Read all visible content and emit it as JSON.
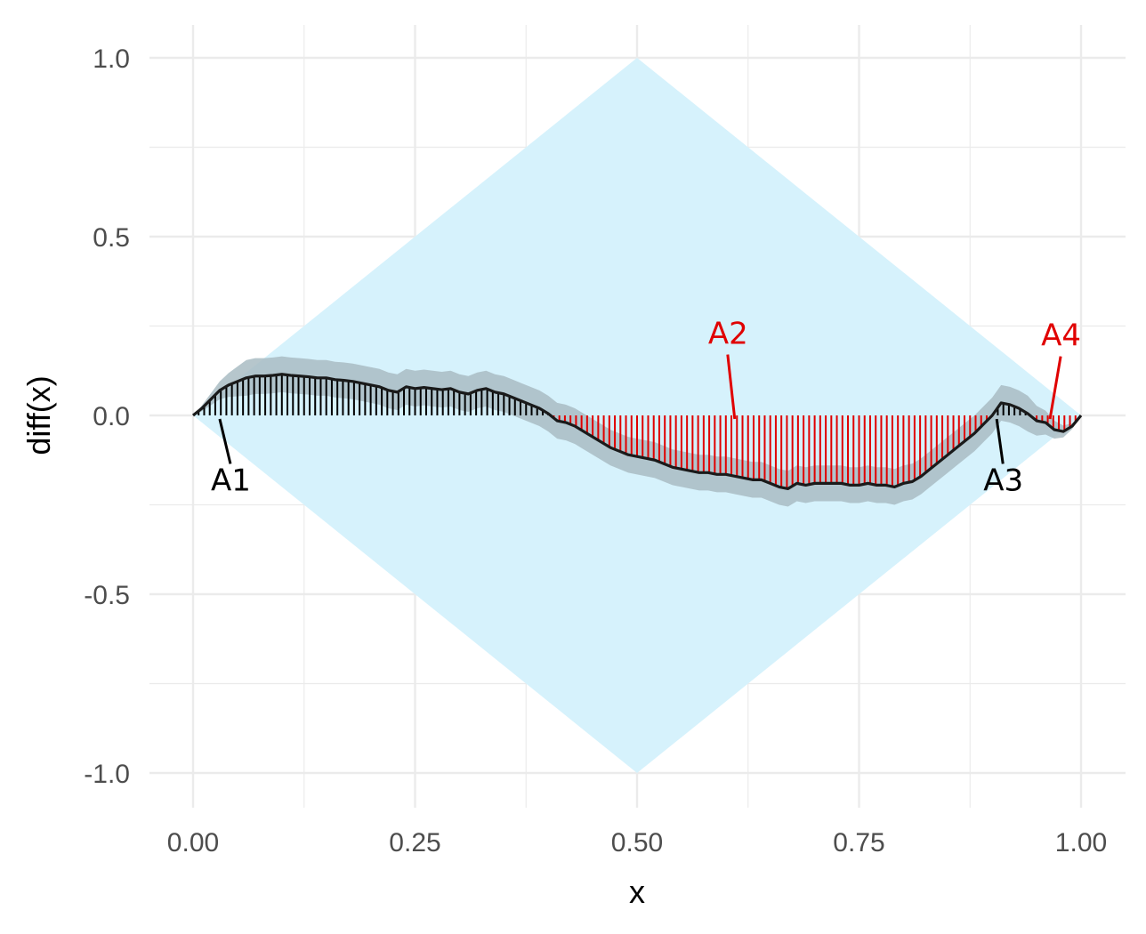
{
  "chart_data": {
    "type": "line",
    "xlabel": "x",
    "ylabel": "diff(x)",
    "xlim": [
      0,
      1
    ],
    "ylim": [
      -1.1,
      1.1
    ],
    "x_ticks": [
      "0.00",
      "0.25",
      "0.50",
      "0.75",
      "1.00"
    ],
    "y_ticks": [
      "-1.0",
      "-0.5",
      "0.0",
      "0.5",
      "1.0"
    ],
    "grid": true,
    "colors": {
      "bound_fill": "#d6f2fc",
      "band_fill": "#a9bcc3",
      "line": "#1a1a1a",
      "positive_stripes": "#000000",
      "negative_stripes": "#e00000",
      "grid": "#ebebeb"
    },
    "bound_region": [
      [
        0,
        0
      ],
      [
        0.5,
        1.0
      ],
      [
        1.0,
        0
      ],
      [
        0.5,
        -1.0
      ]
    ],
    "curve": {
      "x": [
        0,
        0.01,
        0.02,
        0.03,
        0.04,
        0.05,
        0.06,
        0.07,
        0.08,
        0.09,
        0.1,
        0.11,
        0.12,
        0.13,
        0.14,
        0.15,
        0.16,
        0.17,
        0.18,
        0.19,
        0.2,
        0.21,
        0.22,
        0.23,
        0.24,
        0.25,
        0.26,
        0.27,
        0.28,
        0.29,
        0.3,
        0.31,
        0.32,
        0.33,
        0.34,
        0.35,
        0.36,
        0.37,
        0.38,
        0.39,
        0.4,
        0.41,
        0.42,
        0.43,
        0.44,
        0.45,
        0.46,
        0.47,
        0.48,
        0.49,
        0.5,
        0.51,
        0.52,
        0.53,
        0.54,
        0.55,
        0.56,
        0.57,
        0.58,
        0.59,
        0.6,
        0.61,
        0.62,
        0.63,
        0.64,
        0.65,
        0.66,
        0.67,
        0.68,
        0.69,
        0.7,
        0.71,
        0.72,
        0.73,
        0.74,
        0.75,
        0.76,
        0.77,
        0.78,
        0.79,
        0.8,
        0.81,
        0.82,
        0.83,
        0.84,
        0.85,
        0.86,
        0.87,
        0.88,
        0.89,
        0.9,
        0.91,
        0.92,
        0.93,
        0.94,
        0.95,
        0.96,
        0.97,
        0.98,
        0.99,
        1.0
      ],
      "y": [
        0,
        0.02,
        0.045,
        0.07,
        0.085,
        0.095,
        0.105,
        0.11,
        0.11,
        0.112,
        0.115,
        0.112,
        0.11,
        0.108,
        0.105,
        0.105,
        0.1,
        0.098,
        0.095,
        0.09,
        0.085,
        0.08,
        0.07,
        0.065,
        0.08,
        0.075,
        0.078,
        0.075,
        0.072,
        0.075,
        0.065,
        0.06,
        0.07,
        0.075,
        0.065,
        0.06,
        0.05,
        0.04,
        0.03,
        0.02,
        0.005,
        -0.015,
        -0.02,
        -0.03,
        -0.045,
        -0.06,
        -0.075,
        -0.09,
        -0.1,
        -0.11,
        -0.115,
        -0.12,
        -0.125,
        -0.135,
        -0.145,
        -0.15,
        -0.155,
        -0.16,
        -0.16,
        -0.165,
        -0.165,
        -0.17,
        -0.175,
        -0.18,
        -0.18,
        -0.19,
        -0.2,
        -0.205,
        -0.19,
        -0.195,
        -0.19,
        -0.19,
        -0.19,
        -0.19,
        -0.195,
        -0.195,
        -0.19,
        -0.195,
        -0.195,
        -0.2,
        -0.19,
        -0.185,
        -0.17,
        -0.15,
        -0.13,
        -0.11,
        -0.09,
        -0.07,
        -0.05,
        -0.025,
        0.0,
        0.035,
        0.03,
        0.02,
        0.005,
        -0.015,
        -0.02,
        -0.04,
        -0.045,
        -0.03,
        0.0
      ],
      "band_halfwidth": 0.05
    },
    "annotations": [
      {
        "label": "A1",
        "color": "#000000",
        "point": [
          0.03,
          -0.01
        ],
        "text_at": [
          0.02,
          -0.21
        ]
      },
      {
        "label": "A2",
        "color": "#e00000",
        "point": [
          0.61,
          -0.01
        ],
        "text_at": [
          0.58,
          0.2
        ]
      },
      {
        "label": "A3",
        "color": "#000000",
        "point": [
          0.905,
          -0.01
        ],
        "text_at": [
          0.89,
          -0.21
        ]
      },
      {
        "label": "A4",
        "color": "#e00000",
        "point": [
          0.965,
          -0.01
        ],
        "text_at": [
          0.955,
          0.195
        ]
      }
    ]
  }
}
